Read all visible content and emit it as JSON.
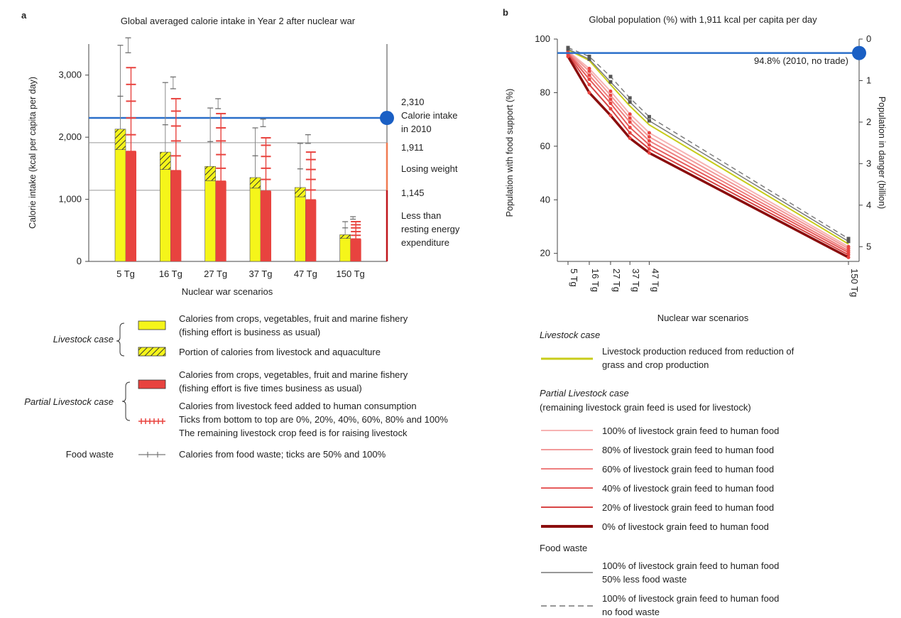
{
  "panel_a": {
    "letter": "a",
    "xlabel": "Nuclear war scenarios",
    "ylabel": "Calorie intake (kcal per capita per day)",
    "ref_lines": [
      {
        "key": "2010",
        "value": 2310,
        "color": "#2a6fc9",
        "labels": [
          "2,310",
          "Calorie intake",
          "in 2010"
        ]
      },
      {
        "key": "1911",
        "value": 1911,
        "color": "#999999",
        "labels": [
          "1,911",
          "Losing weight"
        ]
      },
      {
        "key": "1145",
        "value": 1145,
        "color": "#999999",
        "labels": [
          "1,145",
          "Less than",
          "resting energy",
          "expenditure"
        ]
      }
    ],
    "legend": {
      "livestock_case": "Livestock case",
      "partial_case": "Partial Livestock case",
      "food_waste": "Food waste",
      "yellow_desc": [
        "Calories from crops, vegetables, fruit and marine fishery",
        "(fishing effort is business as usual)"
      ],
      "hatch_desc": "Portion of calories from livestock and aquaculture",
      "red_desc": [
        "Calories from crops, vegetables, fruit and marine fishery",
        "(fishing effort is five times business as usual)"
      ],
      "feed_desc": [
        "Calories from livestock feed added to human consumption",
        "Ticks from bottom to top are 0%, 20%, 40%, 60%, 80% and 100%",
        "The remaining livestock crop feed is for raising livestock"
      ],
      "waste_desc": "Calories from food waste; ticks are 50% and 100%"
    }
  },
  "panel_b": {
    "letter": "b",
    "xlabel": "Nuclear war scenarios",
    "ylabel_left": "Population with food support (%)",
    "ylabel_right": "Population in danger (billion)",
    "baseline_label": "94.8% (2010, no trade)",
    "legend": {
      "livestock_case": "Livestock case",
      "livestock_line": [
        "Livestock production reduced from reduction of",
        "grass and crop production"
      ],
      "partial_case": "Partial Livestock case",
      "partial_sub": "(remaining livestock grain feed is used for livestock)",
      "items": [
        {
          "label": "100% of livestock grain feed to human food",
          "color": "#f7b3b3"
        },
        {
          "label": "80% of livestock grain feed to human food",
          "color": "#f29a9a"
        },
        {
          "label": "60% of livestock grain feed to human food",
          "color": "#ee7f7f"
        },
        {
          "label": "40% of livestock grain feed to human food",
          "color": "#e65c5c"
        },
        {
          "label": "20% of livestock grain feed to human food",
          "color": "#d84545"
        },
        {
          "label": "0% of livestock grain feed to human food",
          "color": "#8b0e0e"
        }
      ],
      "food_waste": "Food waste",
      "waste_items": [
        {
          "label": [
            "100% of livestock grain feed to human food",
            "50% less food waste"
          ],
          "style": "solid"
        },
        {
          "label": [
            "100% of livestock grain feed to human food",
            "no food waste"
          ],
          "style": "dashed"
        }
      ]
    }
  },
  "chart_data": [
    {
      "type": "bar",
      "title": "Global averaged calorie intake in Year 2 after nuclear war",
      "xlabel": "Nuclear war scenarios",
      "ylabel": "Calorie intake (kcal per capita per day)",
      "ylim": [
        0,
        3500
      ],
      "yticks": [
        0,
        1000,
        2000,
        3000
      ],
      "ytick_labels": [
        "0",
        "1,000",
        "2,000",
        "3,000"
      ],
      "categories": [
        "5 Tg",
        "16 Tg",
        "27 Tg",
        "37 Tg",
        "47 Tg",
        "150 Tg"
      ],
      "series": [
        {
          "name": "Livestock case",
          "values": [
            2130,
            1760,
            1530,
            1350,
            1190,
            430
          ]
        },
        {
          "name": "Portion of calories from livestock and aquaculture",
          "values": [
            330,
            280,
            230,
            170,
            150,
            60
          ]
        },
        {
          "name": "Partial Livestock case",
          "values": [
            1770,
            1460,
            1290,
            1130,
            990,
            360
          ]
        }
      ],
      "livestock_feed_ticks": [
        [
          1770,
          2040,
          2310,
          2580,
          2850,
          3120
        ],
        [
          1460,
          1700,
          1940,
          2180,
          2420,
          2620
        ],
        [
          1290,
          1500,
          1720,
          1940,
          2150,
          2380
        ],
        [
          1130,
          1320,
          1500,
          1690,
          1870,
          1990
        ],
        [
          990,
          1150,
          1320,
          1480,
          1640,
          1760
        ],
        [
          360,
          420,
          480,
          540,
          590,
          640
        ]
      ],
      "food_waste_ticks_yellow": [
        [
          2660,
          3480
        ],
        [
          2200,
          2880
        ],
        [
          1930,
          2470
        ],
        [
          1700,
          2150
        ],
        [
          1490,
          1900
        ],
        [
          540,
          640
        ]
      ],
      "food_waste_ticks_red": [
        [
          3360,
          3600
        ],
        [
          2780,
          2970
        ],
        [
          2460,
          2620
        ],
        [
          2170,
          2290
        ],
        [
          1900,
          2040
        ],
        [
          680,
          720
        ]
      ],
      "reference_lines": [
        2310,
        1911,
        1145
      ],
      "grid": false
    },
    {
      "type": "line",
      "title": "Global population (%) with 1,911 kcal per capita per day",
      "xlabel": "Nuclear war scenarios",
      "ylabel": "Population with food support (%)",
      "y2label": "Population in danger (billion)",
      "x_numeric": [
        5,
        16,
        27,
        37,
        47,
        150
      ],
      "categories": [
        "5 Tg",
        "16 Tg",
        "27 Tg",
        "37 Tg",
        "47 Tg",
        "150 Tg"
      ],
      "xlim": [
        0,
        152
      ],
      "ylim": [
        17,
        100
      ],
      "yticks": [
        20,
        40,
        60,
        80,
        100
      ],
      "y2ticks": [
        0,
        1,
        2,
        3,
        4,
        5
      ],
      "baseline": 94.8,
      "series": [
        {
          "name": "Livestock production reduced from reduction of grass and crop production",
          "values": [
            96.0,
            92.0,
            83.0,
            75.0,
            68.0,
            23.5
          ]
        },
        {
          "name": "100% of livestock grain feed to human food",
          "values": [
            95.5,
            89.0,
            80.5,
            72.0,
            65.0,
            22.5
          ]
        },
        {
          "name": "80% of livestock grain feed to human food",
          "values": [
            95.2,
            88.0,
            79.0,
            70.5,
            63.5,
            21.8
          ]
        },
        {
          "name": "60% of livestock grain feed to human food",
          "values": [
            94.9,
            86.5,
            77.5,
            69.0,
            62.0,
            21.0
          ]
        },
        {
          "name": "40% of livestock grain feed to human food",
          "values": [
            94.6,
            85.0,
            76.0,
            67.0,
            60.5,
            20.3
          ]
        },
        {
          "name": "20% of livestock grain feed to human food",
          "values": [
            94.2,
            83.0,
            74.0,
            65.0,
            59.0,
            19.5
          ]
        },
        {
          "name": "0% of livestock grain feed to human food",
          "values": [
            93.5,
            80.0,
            71.5,
            63.0,
            57.5,
            18.5
          ]
        },
        {
          "name": "100% of livestock grain feed to human food, 50% less food waste",
          "values": [
            96.3,
            92.5,
            84.0,
            76.5,
            69.5,
            24.5
          ]
        },
        {
          "name": "100% of livestock grain feed to human food, no food waste",
          "values": [
            96.8,
            93.5,
            86.0,
            78.0,
            71.0,
            25.5
          ]
        }
      ],
      "grid": false
    }
  ]
}
